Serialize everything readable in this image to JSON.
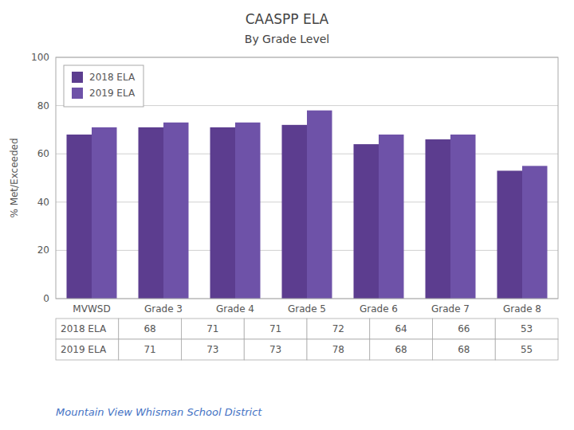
{
  "chart_data": {
    "type": "bar",
    "title": "CAASPP ELA",
    "subtitle": "By Grade Level",
    "categories": [
      "MVWSD",
      "Grade 3",
      "Grade 4",
      "Grade 5",
      "Grade 6",
      "Grade 7",
      "Grade 8"
    ],
    "series": [
      {
        "name": "2018 ELA",
        "color": "#5c3d8f",
        "values": [
          68,
          71,
          71,
          72,
          64,
          66,
          53
        ]
      },
      {
        "name": "2019 ELA",
        "color": "#6e52a8",
        "values": [
          71,
          73,
          73,
          78,
          68,
          68,
          55
        ]
      }
    ],
    "ylabel": "% Met/Exceeded",
    "ylim": [
      0,
      100
    ],
    "yticks": [
      0,
      20,
      40,
      60,
      80,
      100
    ],
    "grid": true,
    "legend": "upper left",
    "footer": "Mountain View Whisman School District"
  }
}
